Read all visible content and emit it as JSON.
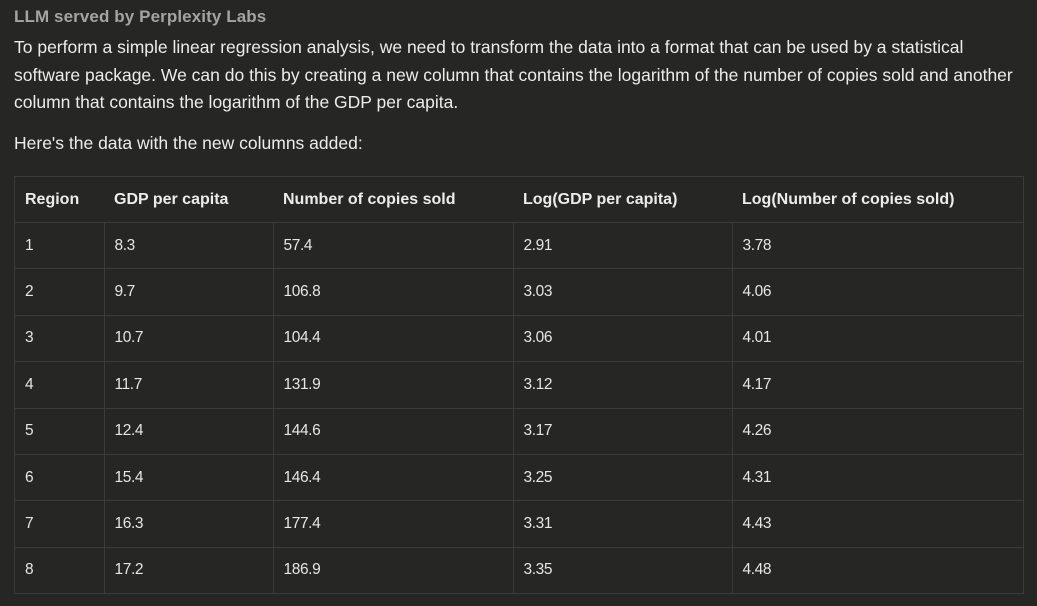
{
  "byline": "LLM served by Perplexity Labs",
  "paragraph": "To perform a simple linear regression analysis, we need to transform the data into a format that can be used by a statistical software package. We can do this by creating a new column that contains the logarithm of the number of copies sold and another column that contains the logarithm of the GDP per capita.",
  "intro": "Here's the data with the new columns added:",
  "table": {
    "headers": [
      "Region",
      "GDP per capita",
      "Number of copies sold",
      "Log(GDP per capita)",
      "Log(Number of copies sold)"
    ],
    "rows": [
      [
        "1",
        "8.3",
        "57.4",
        "2.91",
        "3.78"
      ],
      [
        "2",
        "9.7",
        "106.8",
        "3.03",
        "4.06"
      ],
      [
        "3",
        "10.7",
        "104.4",
        "3.06",
        "4.01"
      ],
      [
        "4",
        "11.7",
        "131.9",
        "3.12",
        "4.17"
      ],
      [
        "5",
        "12.4",
        "144.6",
        "3.17",
        "4.26"
      ],
      [
        "6",
        "15.4",
        "146.4",
        "3.25",
        "4.31"
      ],
      [
        "7",
        "16.3",
        "177.4",
        "3.31",
        "4.43"
      ],
      [
        "8",
        "17.2",
        "186.9",
        "3.35",
        "4.48"
      ]
    ]
  }
}
